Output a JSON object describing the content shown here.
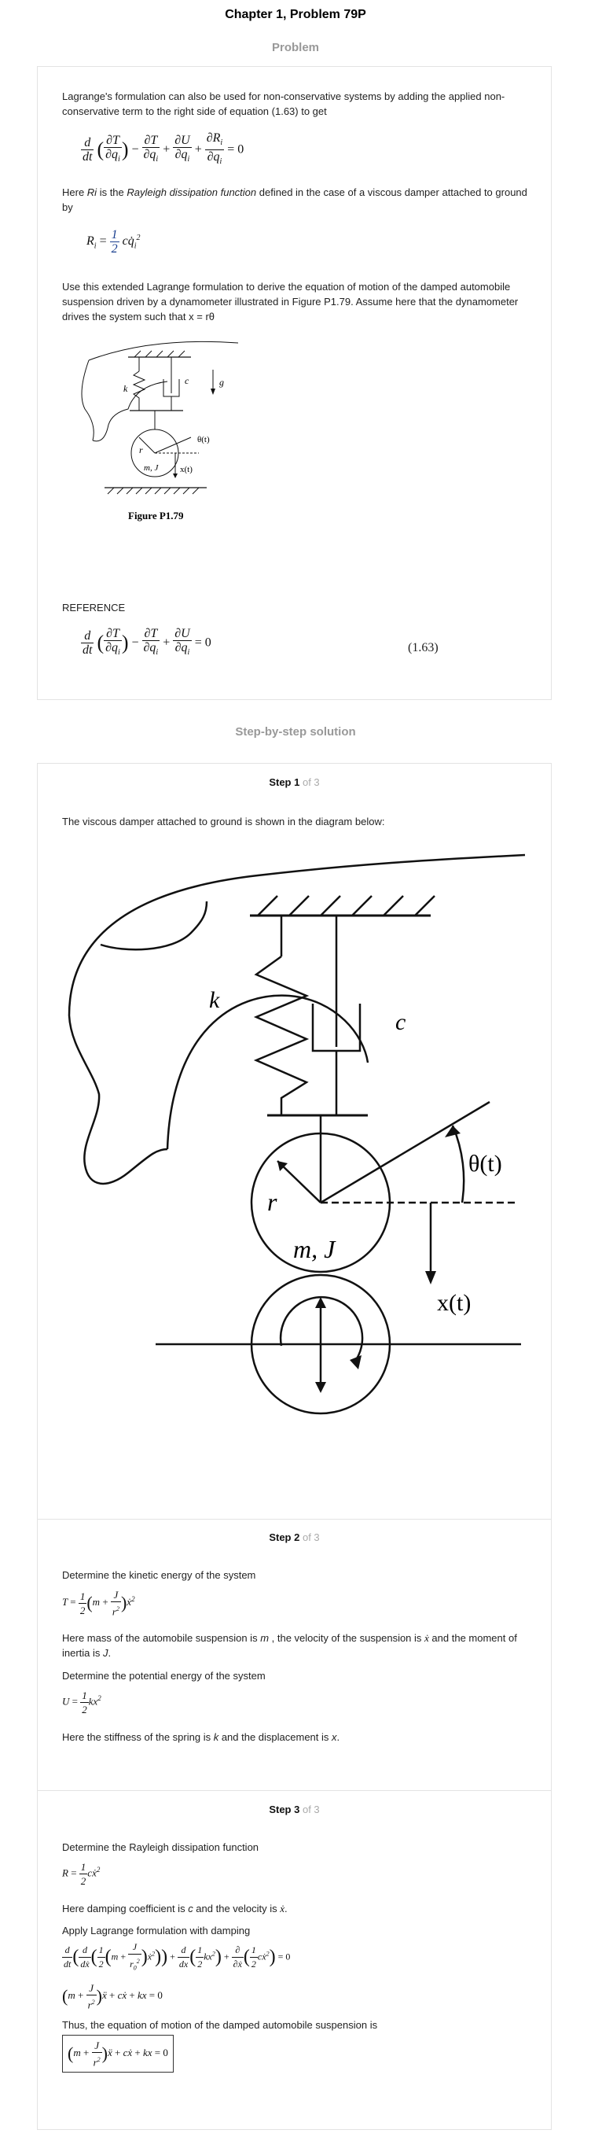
{
  "page_title": "Chapter 1, Problem 79P",
  "problem_label": "Problem",
  "solution_label": "Step-by-step solution",
  "problem": {
    "intro": "Lagrange's formulation can also be used for non-conservative systems by adding the applied non-conservative term to the right side of equation (1.63) to get",
    "rayleigh_pre": "Here ",
    "rayleigh_sym": "Ri",
    "rayleigh_mid": " is the ",
    "rayleigh_term": "Rayleigh dissipation function",
    "rayleigh_post": " defined in the case of a viscous damper attached to ground by",
    "task": "Use this extended Lagrange formulation to derive the equation of motion of the damped automobile suspension driven by a dynamometer illustrated in Figure P1.79. Assume here that the dynamometer drives the system such that x = rθ",
    "figure_caption": "Figure P1.79",
    "reference_label": "REFERENCE",
    "reference_eq_number": "(1.63)"
  },
  "figure_labels": {
    "k": "k",
    "c": "c",
    "g": "g",
    "r": "r",
    "mJ": "m, J",
    "theta": "θ(t)",
    "x": "x(t)"
  },
  "steps": [
    {
      "num": "Step 1",
      "of": "of 3",
      "text": "The viscous damper attached to ground is shown in the diagram below:"
    },
    {
      "num": "Step 2",
      "of": "of 3",
      "t1": "Determine the kinetic energy of the system",
      "t2a": "Here mass of the automobile suspension is ",
      "t2m": "m",
      "t2b": " , the velocity of the suspension is ",
      "t2c": " and the moment of inertia is ",
      "t2J": "J",
      "t2d": ".",
      "t3": "Determine the potential energy of the system",
      "t4a": "Here the stiffness of the spring is ",
      "t4k": "k",
      "t4b": " and the displacement is ",
      "t4x": "x",
      "t4c": "."
    },
    {
      "num": "Step 3",
      "of": "of 3",
      "t1": "Determine the Rayleigh dissipation function",
      "t2a": "Here damping coefficient is ",
      "t2c": "c",
      "t2b": " and the velocity is ",
      "t2d": ".",
      "t3": "Apply Lagrange formulation with damping",
      "t4": "Thus, the equation of motion of the damped automobile suspension is"
    }
  ]
}
